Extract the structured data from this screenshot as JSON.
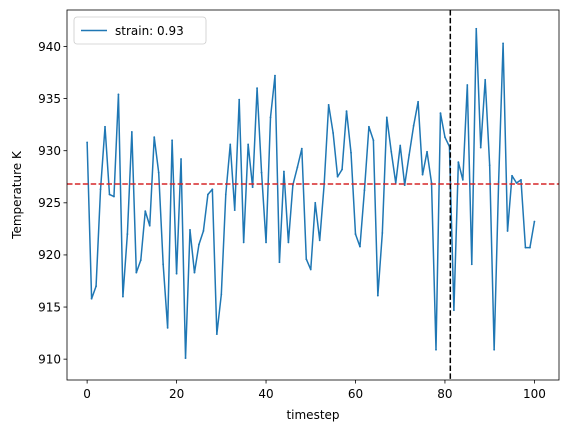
{
  "chart_data": {
    "type": "line",
    "xlabel": "timestep",
    "ylabel": "Temperature K",
    "xlim": [
      -4.5,
      105.5
    ],
    "ylim": [
      908,
      943.5
    ],
    "xticks": [
      0,
      20,
      40,
      60,
      80,
      100
    ],
    "yticks": [
      910,
      915,
      920,
      925,
      930,
      935,
      940
    ],
    "grid": false,
    "legend_position": "top-left",
    "series": [
      {
        "name": "strain: 0.93",
        "color": "#1f77b4",
        "x": [
          0,
          1,
          2,
          3,
          4,
          5,
          6,
          7,
          8,
          9,
          10,
          11,
          12,
          13,
          14,
          15,
          16,
          17,
          18,
          19,
          20,
          21,
          22,
          23,
          24,
          25,
          26,
          27,
          28,
          29,
          30,
          31,
          32,
          33,
          34,
          35,
          36,
          37,
          38,
          39,
          40,
          41,
          42,
          43,
          44,
          45,
          46,
          47,
          48,
          49,
          50,
          51,
          52,
          53,
          54,
          55,
          56,
          57,
          58,
          59,
          60,
          61,
          62,
          63,
          64,
          65,
          66,
          67,
          68,
          69,
          70,
          71,
          72,
          73,
          74,
          75,
          76,
          77,
          78,
          79,
          80,
          81,
          82,
          83,
          84,
          85,
          86,
          87,
          88,
          89,
          90,
          91,
          92,
          93,
          94,
          95,
          96,
          97,
          98,
          99,
          100
        ],
        "y": [
          930.8,
          915.8,
          917.0,
          926.3,
          932.3,
          925.8,
          925.6,
          935.4,
          916.0,
          922.0,
          931.8,
          918.3,
          919.5,
          924.2,
          922.8,
          931.3,
          927.9,
          919.1,
          913.0,
          931.0,
          918.2,
          929.2,
          910.1,
          922.4,
          918.3,
          921.0,
          922.3,
          925.8,
          926.3,
          912.4,
          916.2,
          925.8,
          930.6,
          924.3,
          934.9,
          921.2,
          930.6,
          926.5,
          936.0,
          927.9,
          921.2,
          933.2,
          937.2,
          919.3,
          928.0,
          921.2,
          926.7,
          928.4,
          930.2,
          919.6,
          918.6,
          925.0,
          921.4,
          926.8,
          934.4,
          931.7,
          927.5,
          928.2,
          933.8,
          929.8,
          922.0,
          920.8,
          926.2,
          932.3,
          931.0,
          916.1,
          922.1,
          933.2,
          929.9,
          926.9,
          930.5,
          926.7,
          929.6,
          932.4,
          934.7,
          927.7,
          929.9,
          926.9,
          910.9,
          933.6,
          931.3,
          930.4,
          914.7,
          928.9,
          927.2,
          936.3,
          919.1,
          941.7,
          930.3,
          936.8,
          928.6,
          910.9,
          927.0,
          940.3,
          922.3,
          927.6,
          926.9,
          927.2,
          920.7,
          920.7,
          923.2
        ]
      }
    ],
    "reference_lines": [
      {
        "orientation": "horizontal",
        "value": 926.8,
        "color": "#d62728",
        "style": "dashed"
      },
      {
        "orientation": "vertical",
        "value": 81.2,
        "color": "#000000",
        "style": "dashed"
      }
    ]
  }
}
